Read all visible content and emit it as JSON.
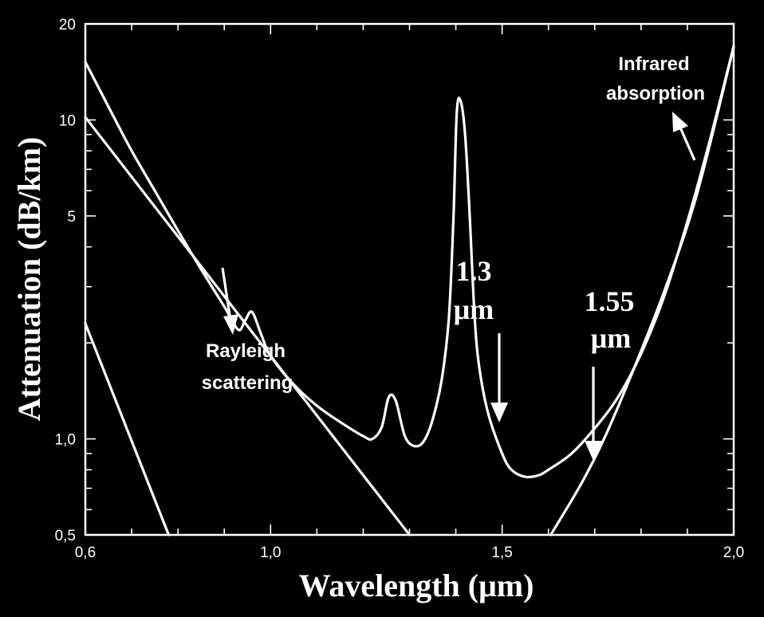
{
  "chart_data": {
    "type": "line",
    "title": "",
    "xlabel": "Wavelength (μm)",
    "ylabel": "Attenuation (dB/km)",
    "xlim": [
      0.6,
      2.0
    ],
    "ylim": [
      0.5,
      20
    ],
    "yscale": "log",
    "grid": false,
    "x_ticks": [
      {
        "value": 0.6,
        "label": "0,6"
      },
      {
        "value": 1.0,
        "label": "1,0"
      },
      {
        "value": 1.5,
        "label": "1,5"
      },
      {
        "value": 2.0,
        "label": "2,0"
      }
    ],
    "y_ticks": [
      {
        "value": 0.5,
        "label": "0,5"
      },
      {
        "value": 1.0,
        "label": "1,0"
      },
      {
        "value": 5,
        "label": "5"
      },
      {
        "value": 10,
        "label": "10"
      },
      {
        "value": 20,
        "label": "20"
      }
    ],
    "series": [
      {
        "name": "",
        "x": [
          0.6,
          0.65,
          0.7,
          0.75,
          0.8,
          0.85,
          0.9,
          0.93,
          0.945,
          0.96,
          0.98,
          1.0,
          1.05,
          1.1,
          1.15,
          1.2,
          1.22,
          1.24,
          1.255,
          1.27,
          1.29,
          1.31,
          1.33,
          1.35,
          1.37,
          1.385,
          1.395,
          1.402,
          1.41,
          1.42,
          1.43,
          1.44,
          1.45,
          1.47,
          1.5,
          1.52,
          1.55,
          1.58,
          1.6,
          1.65,
          1.7,
          1.75,
          1.8,
          1.85,
          1.9,
          1.95,
          2.0
        ],
        "y": [
          15.2,
          11.0,
          8.0,
          6.0,
          4.5,
          3.4,
          2.6,
          2.2,
          2.35,
          2.5,
          2.12,
          1.82,
          1.48,
          1.27,
          1.13,
          1.02,
          1.0,
          1.09,
          1.35,
          1.32,
          1.02,
          0.95,
          0.98,
          1.15,
          1.55,
          2.4,
          5.0,
          10.5,
          11.5,
          9.0,
          5.0,
          2.5,
          1.7,
          1.2,
          0.9,
          0.8,
          0.76,
          0.77,
          0.8,
          0.9,
          1.08,
          1.35,
          1.85,
          2.8,
          4.8,
          8.8,
          17.0
        ]
      },
      {
        "name": "",
        "x": [
          0.6,
          1.3
        ],
        "y": [
          10.2,
          0.5
        ]
      },
      {
        "name": "",
        "x": [
          0.6,
          0.78
        ],
        "y": [
          2.3,
          0.5
        ]
      },
      {
        "name": "",
        "x": [
          1.605,
          1.67,
          1.72,
          1.78,
          1.85,
          1.92,
          2.0
        ],
        "y": [
          0.5,
          0.72,
          1.0,
          1.6,
          2.9,
          5.8,
          17.0
        ]
      }
    ],
    "annotations": {
      "rayleigh": [
        "Rayleigh",
        "scattering"
      ],
      "infrared": [
        "Infrared",
        "absorption"
      ],
      "window_1": [
        "1.3",
        "μm"
      ],
      "window_2": [
        "1.55",
        "μm"
      ]
    }
  }
}
